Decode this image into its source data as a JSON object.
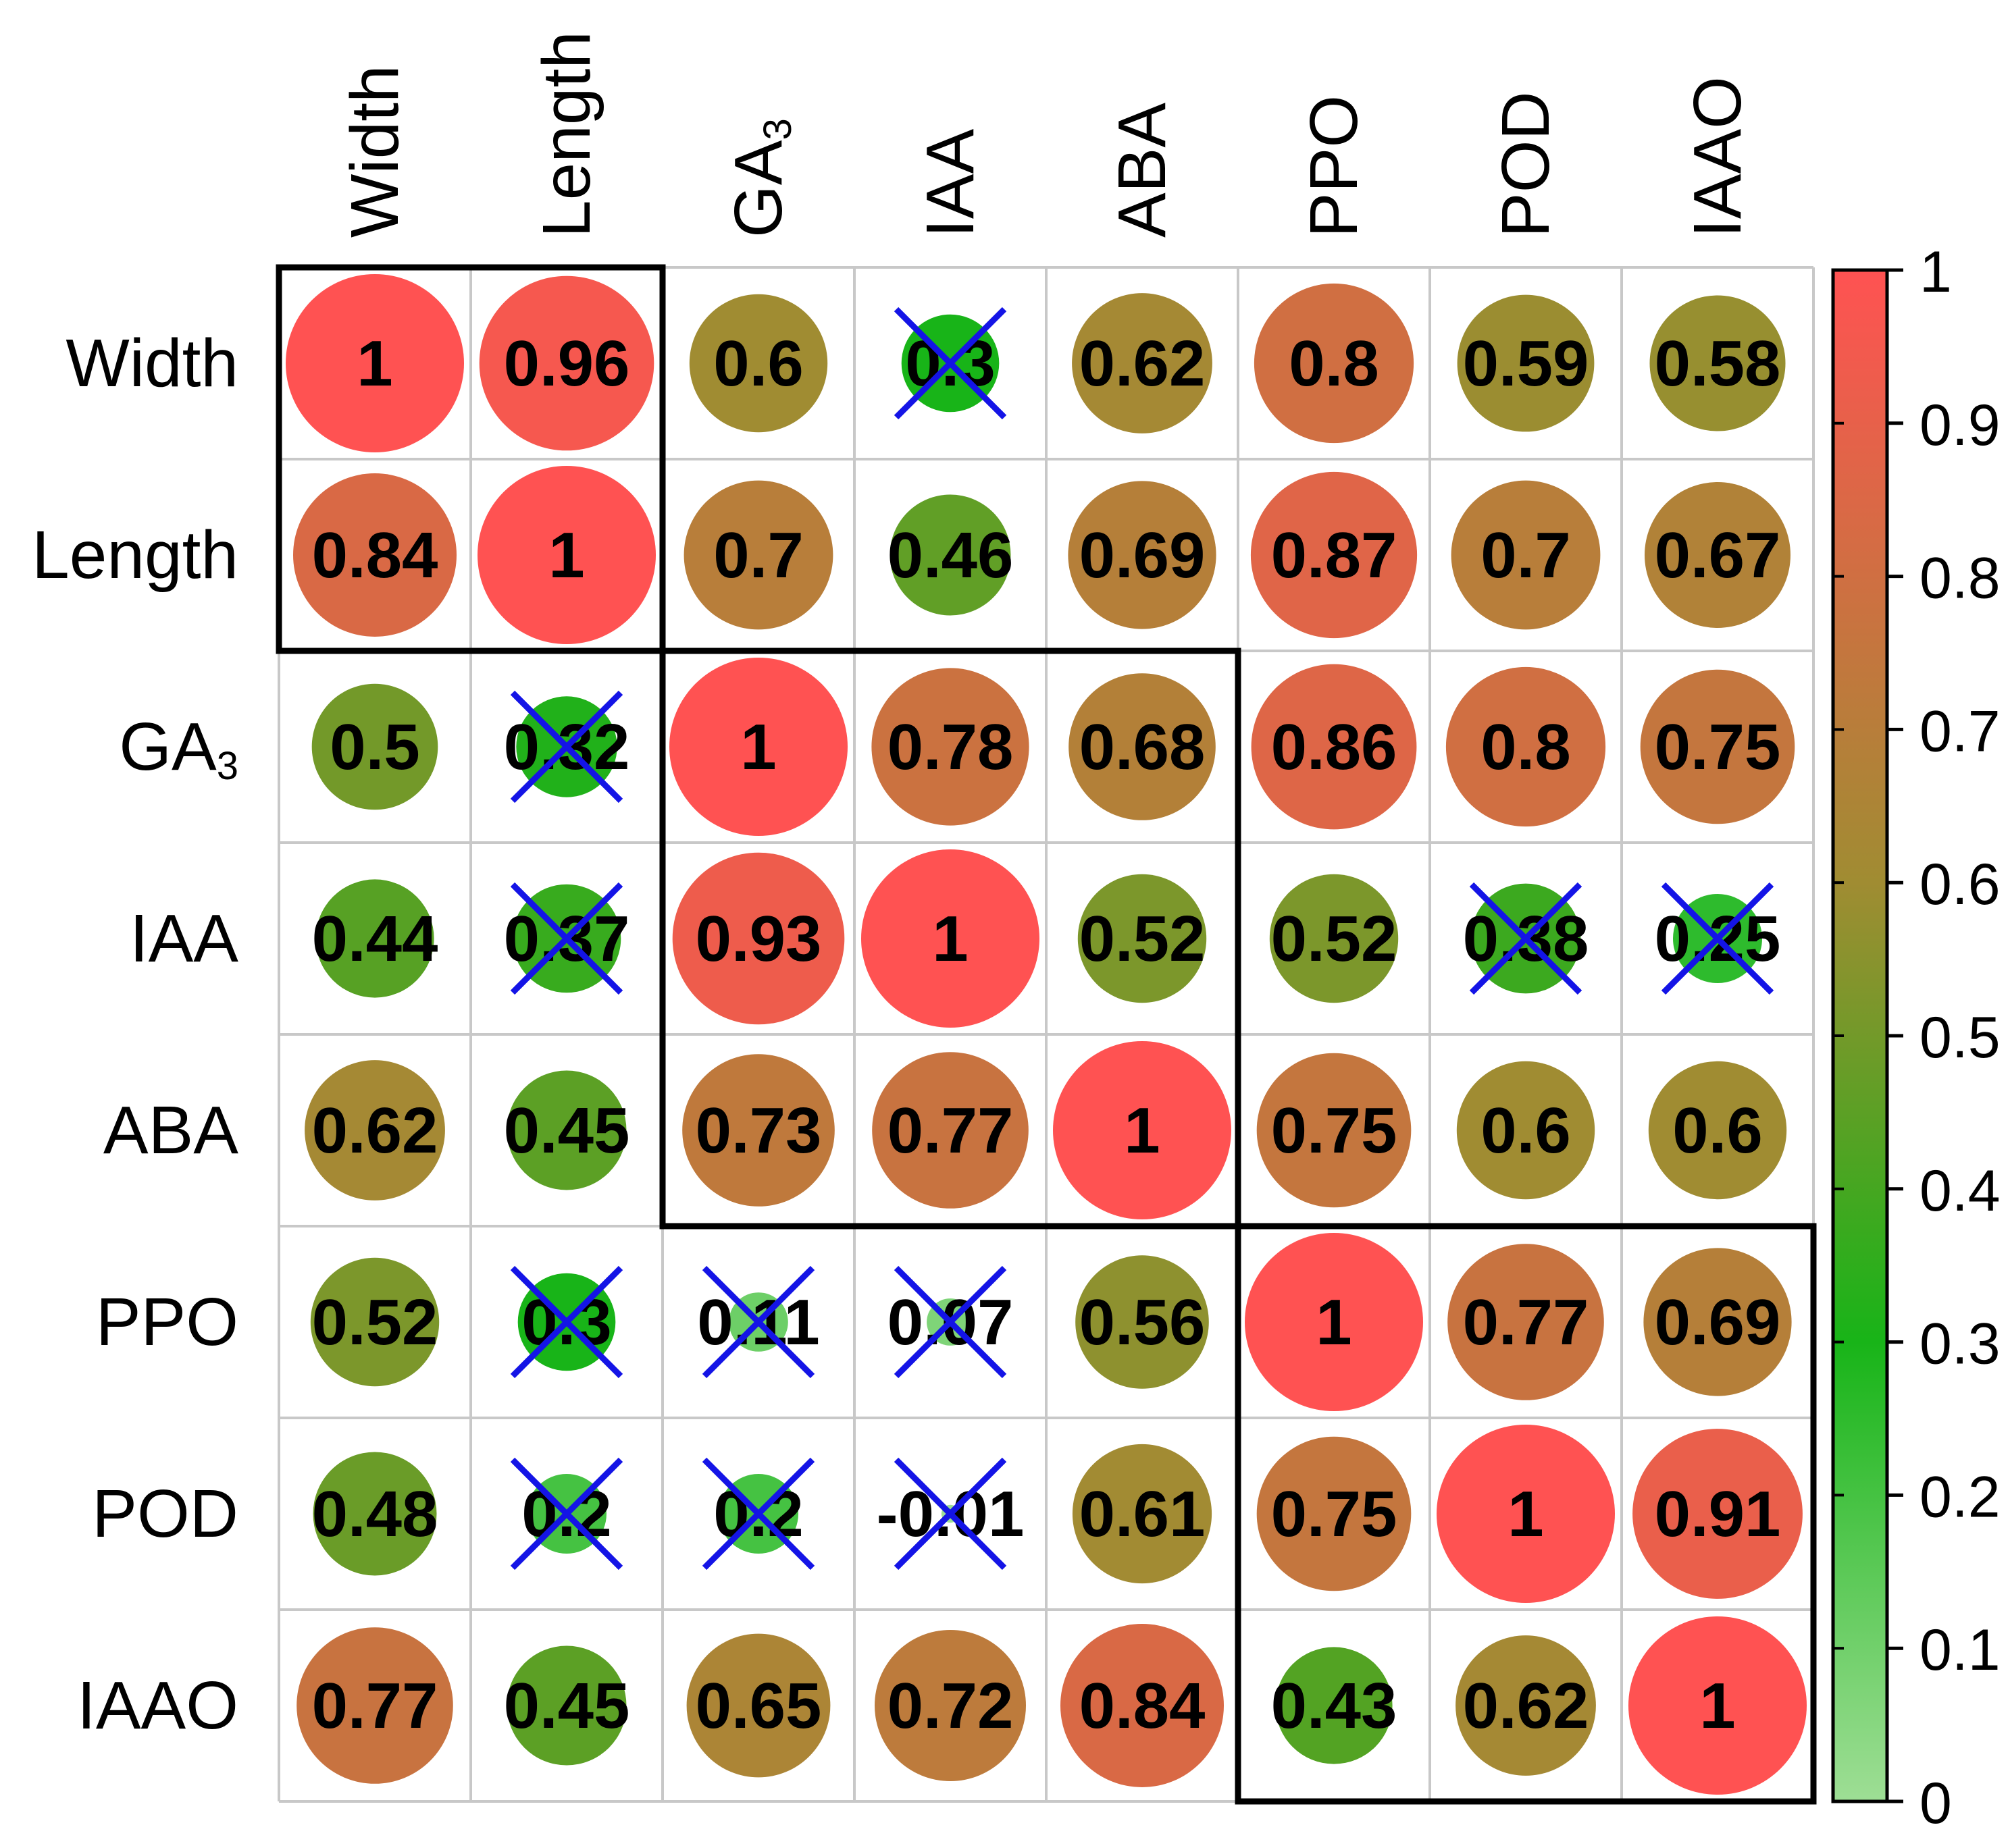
{
  "chart_data": {
    "type": "heatmap",
    "title": "",
    "variables": [
      "Width",
      "Length",
      "GA3",
      "IAA",
      "ABA",
      "PPO",
      "POD",
      "IAAO"
    ],
    "row_labels": [
      {
        "main": "Width",
        "sub": ""
      },
      {
        "main": "Length",
        "sub": ""
      },
      {
        "main": "GA",
        "sub": "3"
      },
      {
        "main": "IAA",
        "sub": ""
      },
      {
        "main": "ABA",
        "sub": ""
      },
      {
        "main": "PPO",
        "sub": ""
      },
      {
        "main": "POD",
        "sub": ""
      },
      {
        "main": "IAAO",
        "sub": ""
      }
    ],
    "col_labels": [
      {
        "main": "Width",
        "sub": ""
      },
      {
        "main": "Length",
        "sub": ""
      },
      {
        "main": "GA",
        "sub": "3"
      },
      {
        "main": "IAA",
        "sub": ""
      },
      {
        "main": "ABA",
        "sub": ""
      },
      {
        "main": "PPO",
        "sub": ""
      },
      {
        "main": "POD",
        "sub": ""
      },
      {
        "main": "IAAO",
        "sub": ""
      }
    ],
    "values": [
      [
        1,
        0.96,
        0.6,
        0.3,
        0.62,
        0.8,
        0.59,
        0.58
      ],
      [
        0.84,
        1,
        0.7,
        0.46,
        0.69,
        0.87,
        0.7,
        0.67
      ],
      [
        0.5,
        0.32,
        1,
        0.78,
        0.68,
        0.86,
        0.8,
        0.75
      ],
      [
        0.44,
        0.37,
        0.93,
        1,
        0.52,
        0.52,
        0.38,
        0.25
      ],
      [
        0.62,
        0.45,
        0.73,
        0.77,
        1,
        0.75,
        0.6,
        0.6
      ],
      [
        0.52,
        0.3,
        0.11,
        0.07,
        0.56,
        1,
        0.77,
        0.69
      ],
      [
        0.48,
        0.2,
        0.2,
        -0.01,
        0.61,
        0.75,
        1,
        0.91
      ],
      [
        0.77,
        0.45,
        0.65,
        0.72,
        0.84,
        0.43,
        0.62,
        1
      ]
    ],
    "value_labels": [
      [
        "1",
        "0.96",
        "0.6",
        "0.3",
        "0.62",
        "0.8",
        "0.59",
        "0.58"
      ],
      [
        "0.84",
        "1",
        "0.7",
        "0.46",
        "0.69",
        "0.87",
        "0.7",
        "0.67"
      ],
      [
        "0.5",
        "0.32",
        "1",
        "0.78",
        "0.68",
        "0.86",
        "0.8",
        "0.75"
      ],
      [
        "0.44",
        "0.37",
        "0.93",
        "1",
        "0.52",
        "0.52",
        "0.38",
        "0.25"
      ],
      [
        "0.62",
        "0.45",
        "0.73",
        "0.77",
        "1",
        "0.75",
        "0.6",
        "0.6"
      ],
      [
        "0.52",
        "0.3",
        "0.11",
        "0.07",
        "0.56",
        "1",
        "0.77",
        "0.69"
      ],
      [
        "0.48",
        "0.2",
        "0.2",
        "-0.01",
        "0.61",
        "0.75",
        "1",
        "0.91"
      ],
      [
        "0.77",
        "0.45",
        "0.65",
        "0.72",
        "0.84",
        "0.43",
        "0.62",
        "1"
      ]
    ],
    "insignificant": [
      [
        0,
        3
      ],
      [
        2,
        1
      ],
      [
        3,
        1
      ],
      [
        3,
        6
      ],
      [
        3,
        7
      ],
      [
        5,
        1
      ],
      [
        5,
        2
      ],
      [
        5,
        3
      ],
      [
        6,
        1
      ],
      [
        6,
        2
      ],
      [
        6,
        3
      ]
    ],
    "clusters": [
      {
        "start": 0,
        "end": 1
      },
      {
        "start": 2,
        "end": 4
      },
      {
        "start": 5,
        "end": 7
      }
    ],
    "colorbar": {
      "range": [
        0,
        1
      ],
      "ticks": [
        "0",
        "0.1",
        "0.2",
        "0.3",
        "0.4",
        "0.5",
        "0.6",
        "0.7",
        "0.8",
        "0.9",
        "1"
      ],
      "tick_values": [
        0,
        0.1,
        0.2,
        0.3,
        0.4,
        0.5,
        0.6,
        0.7,
        0.8,
        0.9,
        1
      ],
      "stops": [
        {
          "value": 0,
          "color": "#9ede95"
        },
        {
          "value": 0.3,
          "color": "#18b418"
        },
        {
          "value": 0.6,
          "color": "#a08c32"
        },
        {
          "value": 1,
          "color": "#ff5252"
        }
      ],
      "position": "right"
    },
    "colors": {
      "grid": "#c8c8c8",
      "cluster_box": "#000000",
      "cross": "#1414e6",
      "text": "#000000"
    }
  }
}
